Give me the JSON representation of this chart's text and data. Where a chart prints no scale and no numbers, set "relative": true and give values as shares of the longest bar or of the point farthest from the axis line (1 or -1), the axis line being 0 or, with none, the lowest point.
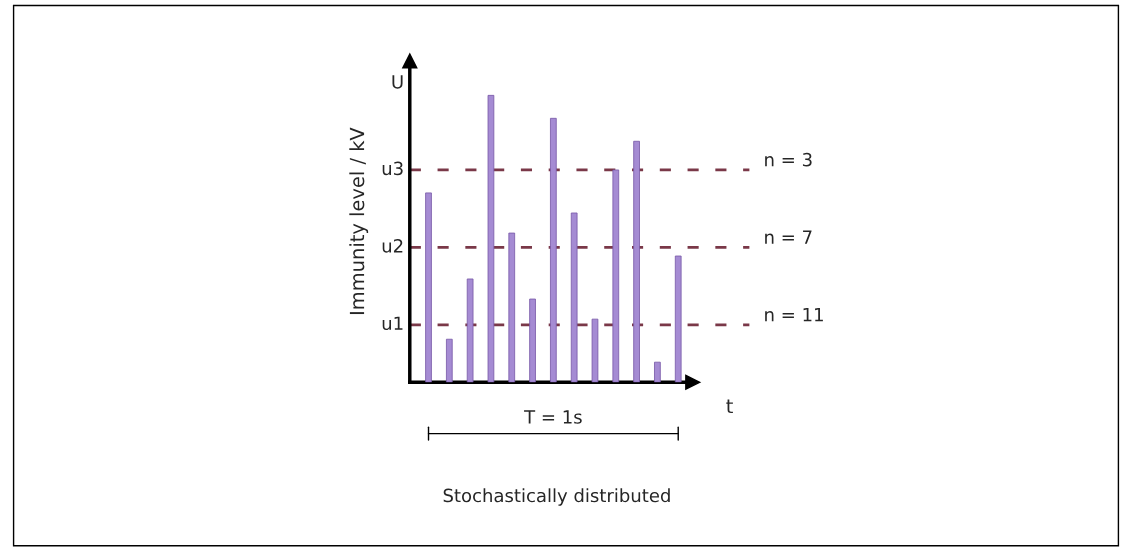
{
  "chart_data": {
    "type": "bar",
    "relative": true,
    "ylabel": "Immunity level / kV",
    "xlabel": "t",
    "categories": [
      null,
      null,
      null,
      null,
      null,
      null,
      null,
      null,
      null,
      null,
      null,
      null,
      null
    ],
    "series": [
      {
        "color": "#a58bd3",
        "values": [
          0.66,
          0.15,
          0.36,
          1,
          0.52,
          0.29,
          0.92,
          0.59,
          0.22,
          0.74,
          0.84,
          0.07,
          0.44
        ]
      }
    ],
    "ref_lines": [
      {
        "axis": "y",
        "value": 0.74,
        "label": "u3",
        "color": "#7a3848",
        "line_style": "dashed"
      },
      {
        "axis": "y",
        "value": 0.47,
        "label": "u2",
        "color": "#7a3848",
        "line_style": "dashed"
      },
      {
        "axis": "y",
        "value": 0.2,
        "label": "u1",
        "color": "#7a3848",
        "line_style": "dashed"
      }
    ],
    "annotations": [
      "n = 3",
      "n = 7",
      "n = 11",
      "U",
      "T = 1s",
      "Stochastically distributed"
    ],
    "grid": false
  }
}
